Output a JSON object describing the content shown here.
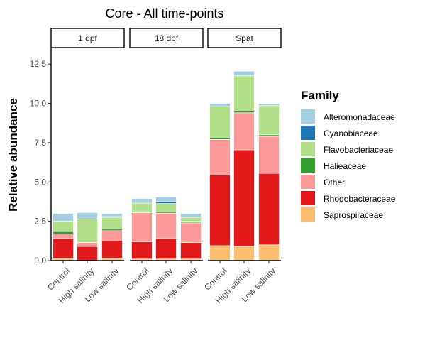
{
  "chart_data": {
    "type": "bar",
    "stacked": true,
    "title": "Core - All time-points",
    "xlabel": "",
    "ylabel": "Relative abundance",
    "ylim": [
      0,
      13.5
    ],
    "y_ticks": [
      "0.0",
      "2.5",
      "5.0",
      "7.5",
      "10.0",
      "12.5"
    ],
    "y_tick_values": [
      0,
      2.5,
      5,
      7.5,
      10,
      12.5
    ],
    "grid": false,
    "legend_position": "right",
    "legend_title": "Family",
    "facets": [
      "1 dpf",
      "18 dpf",
      "Spat"
    ],
    "categories": [
      "Control",
      "High salinity",
      "Low salinity"
    ],
    "series": [
      {
        "name": "Saprospiraceae",
        "color": "#FDBF6F",
        "values": [
          [
            0.15,
            0.0,
            0.15
          ],
          [
            0.1,
            0.1,
            0.1
          ],
          [
            0.95,
            0.9,
            1.0
          ]
        ]
      },
      {
        "name": "Rhodobacteraceae",
        "color": "#E31A1C",
        "values": [
          [
            1.25,
            0.9,
            1.15
          ],
          [
            1.1,
            1.3,
            1.05
          ],
          [
            4.5,
            6.15,
            4.55
          ]
        ]
      },
      {
        "name": "Other",
        "color": "#FB9A99",
        "values": [
          [
            0.3,
            0.25,
            0.6
          ],
          [
            1.85,
            1.6,
            1.25
          ],
          [
            2.25,
            2.35,
            2.35
          ]
        ]
      },
      {
        "name": "Halieaceae",
        "color": "#33A02C",
        "values": [
          [
            0.15,
            0.0,
            0.1
          ],
          [
            0.1,
            0.08,
            0.1
          ],
          [
            0.1,
            0.1,
            0.1
          ]
        ]
      },
      {
        "name": "Flavobacteriaceae",
        "color": "#B2DF8A",
        "values": [
          [
            0.65,
            1.5,
            0.75
          ],
          [
            0.5,
            0.55,
            0.25
          ],
          [
            2.0,
            2.25,
            1.85
          ]
        ]
      },
      {
        "name": "Cyanobiaceae",
        "color": "#1F78B4",
        "values": [
          [
            0.0,
            0.0,
            0.05
          ],
          [
            0.0,
            0.12,
            0.0
          ],
          [
            0.0,
            0.0,
            0.0
          ]
        ]
      },
      {
        "name": "Alteromonadaceae",
        "color": "#A6CEE3",
        "values": [
          [
            0.5,
            0.4,
            0.2
          ],
          [
            0.3,
            0.3,
            0.25
          ],
          [
            0.2,
            0.3,
            0.15
          ]
        ]
      }
    ],
    "legend_order": [
      "Alteromonadaceae",
      "Cyanobiaceae",
      "Flavobacteriaceae",
      "Halieaceae",
      "Other",
      "Rhodobacteraceae",
      "Saprospiraceae"
    ]
  }
}
